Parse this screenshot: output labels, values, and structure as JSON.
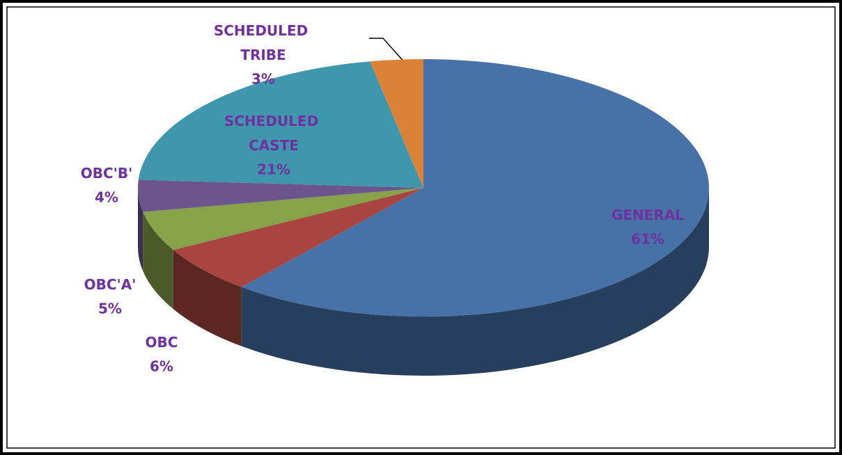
{
  "chart_data": {
    "type": "pie",
    "three_d": true,
    "categories": [
      "GENERAL",
      "OBC",
      "OBC'A'",
      "OBC'B'",
      "SCHEDULED CASTE",
      "SCHEDULED TRIBE"
    ],
    "values": [
      61,
      6,
      5,
      4,
      21,
      3
    ],
    "value_labels": [
      "61%",
      "6%",
      "5%",
      "4%",
      "21%",
      "3%"
    ],
    "colors": [
      "#4672a8",
      "#a84540",
      "#86a34a",
      "#6c558f",
      "#3f97ae",
      "#db8138"
    ]
  }
}
